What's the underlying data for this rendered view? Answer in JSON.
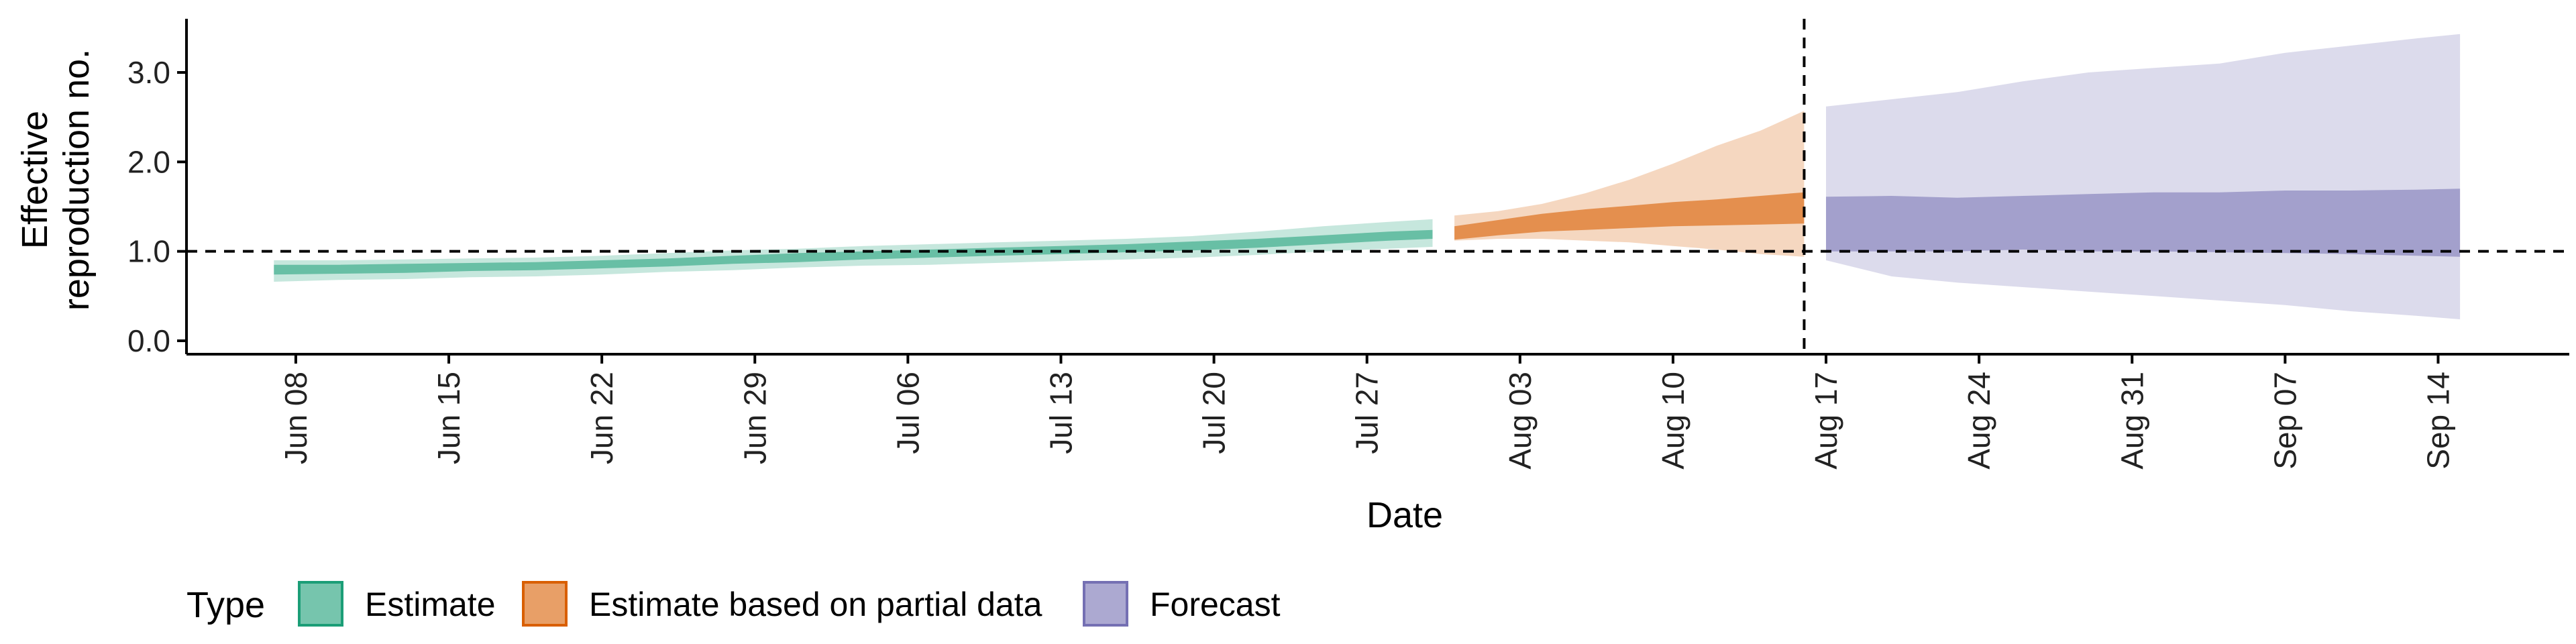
{
  "chart_data": {
    "type": "area",
    "xlabel": "Date",
    "ylabel_lines": [
      "Effective",
      "reproduction no."
    ],
    "x_axis": {
      "range": [
        "2020-06-03",
        "2020-09-20"
      ],
      "ticks": [
        {
          "date": "2020-06-08",
          "label": "Jun 08"
        },
        {
          "date": "2020-06-15",
          "label": "Jun 15"
        },
        {
          "date": "2020-06-22",
          "label": "Jun 22"
        },
        {
          "date": "2020-06-29",
          "label": "Jun 29"
        },
        {
          "date": "2020-07-06",
          "label": "Jul 06"
        },
        {
          "date": "2020-07-13",
          "label": "Jul 13"
        },
        {
          "date": "2020-07-20",
          "label": "Jul 20"
        },
        {
          "date": "2020-07-27",
          "label": "Jul 27"
        },
        {
          "date": "2020-08-03",
          "label": "Aug 03"
        },
        {
          "date": "2020-08-10",
          "label": "Aug 10"
        },
        {
          "date": "2020-08-17",
          "label": "Aug 17"
        },
        {
          "date": "2020-08-24",
          "label": "Aug 24"
        },
        {
          "date": "2020-08-31",
          "label": "Aug 31"
        },
        {
          "date": "2020-09-07",
          "label": "Sep 07"
        },
        {
          "date": "2020-09-14",
          "label": "Sep 14"
        }
      ]
    },
    "y_axis": {
      "range": [
        -0.15,
        3.6
      ],
      "ticks": [
        {
          "value": 0.0,
          "label": "0.0"
        },
        {
          "value": 1.0,
          "label": "1.0"
        },
        {
          "value": 2.0,
          "label": "2.0"
        },
        {
          "value": 3.0,
          "label": "3.0"
        }
      ]
    },
    "reference_lines": {
      "horizontal_y": 1.0,
      "vertical_date": "2020-08-16",
      "style": "dashed"
    },
    "grid": false,
    "legend": {
      "position": "bottom-left",
      "title": "Type",
      "entries": [
        {
          "label": "Estimate",
          "series": "estimate"
        },
        {
          "label": "Estimate based on partial data",
          "series": "partial"
        },
        {
          "label": "Forecast",
          "series": "forecast"
        }
      ]
    },
    "series": [
      {
        "key": "estimate",
        "color": "#1B9E77",
        "inner_opacity": 0.55,
        "outer_opacity": 0.25,
        "dates": [
          "2020-06-07",
          "2020-06-10",
          "2020-06-13",
          "2020-06-16",
          "2020-06-19",
          "2020-06-22",
          "2020-06-25",
          "2020-06-28",
          "2020-07-01",
          "2020-07-04",
          "2020-07-07",
          "2020-07-10",
          "2020-07-13",
          "2020-07-16",
          "2020-07-19",
          "2020-07-22",
          "2020-07-25",
          "2020-07-28",
          "2020-07-30"
        ],
        "lower_90": [
          0.66,
          0.68,
          0.69,
          0.71,
          0.72,
          0.74,
          0.77,
          0.79,
          0.82,
          0.84,
          0.85,
          0.87,
          0.89,
          0.91,
          0.93,
          0.96,
          1.0,
          1.03,
          1.05
        ],
        "lower_50": [
          0.74,
          0.75,
          0.76,
          0.78,
          0.79,
          0.81,
          0.83,
          0.86,
          0.88,
          0.91,
          0.93,
          0.95,
          0.97,
          0.99,
          1.01,
          1.04,
          1.08,
          1.12,
          1.14
        ],
        "upper_50": [
          0.85,
          0.85,
          0.86,
          0.87,
          0.88,
          0.9,
          0.92,
          0.95,
          0.98,
          1.0,
          1.02,
          1.04,
          1.06,
          1.08,
          1.11,
          1.14,
          1.18,
          1.22,
          1.24
        ],
        "upper_90": [
          0.9,
          0.9,
          0.91,
          0.92,
          0.93,
          0.95,
          0.98,
          1.01,
          1.03,
          1.06,
          1.08,
          1.1,
          1.12,
          1.14,
          1.17,
          1.22,
          1.28,
          1.33,
          1.36
        ]
      },
      {
        "key": "partial",
        "color": "#D95F02",
        "inner_opacity": 0.6,
        "outer_opacity": 0.25,
        "dates": [
          "2020-07-31",
          "2020-08-02",
          "2020-08-04",
          "2020-08-06",
          "2020-08-08",
          "2020-08-10",
          "2020-08-12",
          "2020-08-14",
          "2020-08-16"
        ],
        "lower_90": [
          1.12,
          1.14,
          1.14,
          1.12,
          1.1,
          1.06,
          1.02,
          0.97,
          0.94
        ],
        "lower_50": [
          1.13,
          1.18,
          1.22,
          1.24,
          1.26,
          1.28,
          1.29,
          1.3,
          1.31
        ],
        "upper_50": [
          1.28,
          1.35,
          1.42,
          1.47,
          1.51,
          1.55,
          1.58,
          1.62,
          1.66
        ],
        "upper_90": [
          1.4,
          1.45,
          1.53,
          1.65,
          1.8,
          1.98,
          2.18,
          2.35,
          2.57
        ]
      },
      {
        "key": "forecast",
        "color": "#7570B3",
        "inner_opacity": 0.55,
        "outer_opacity": 0.25,
        "dates": [
          "2020-08-17",
          "2020-08-20",
          "2020-08-23",
          "2020-08-26",
          "2020-08-29",
          "2020-09-01",
          "2020-09-04",
          "2020-09-07",
          "2020-09-10",
          "2020-09-13",
          "2020-09-15"
        ],
        "lower_90": [
          0.9,
          0.72,
          0.65,
          0.6,
          0.55,
          0.5,
          0.45,
          0.4,
          0.33,
          0.28,
          0.24
        ],
        "lower_50": [
          1.0,
          1.0,
          1.0,
          1.02,
          1.0,
          1.0,
          0.99,
          0.98,
          0.97,
          0.95,
          0.94
        ],
        "upper_50": [
          1.61,
          1.62,
          1.6,
          1.62,
          1.64,
          1.66,
          1.66,
          1.68,
          1.68,
          1.69,
          1.7
        ],
        "upper_90": [
          2.62,
          2.7,
          2.78,
          2.9,
          3.0,
          3.05,
          3.1,
          3.22,
          3.3,
          3.38,
          3.43
        ]
      }
    ]
  }
}
